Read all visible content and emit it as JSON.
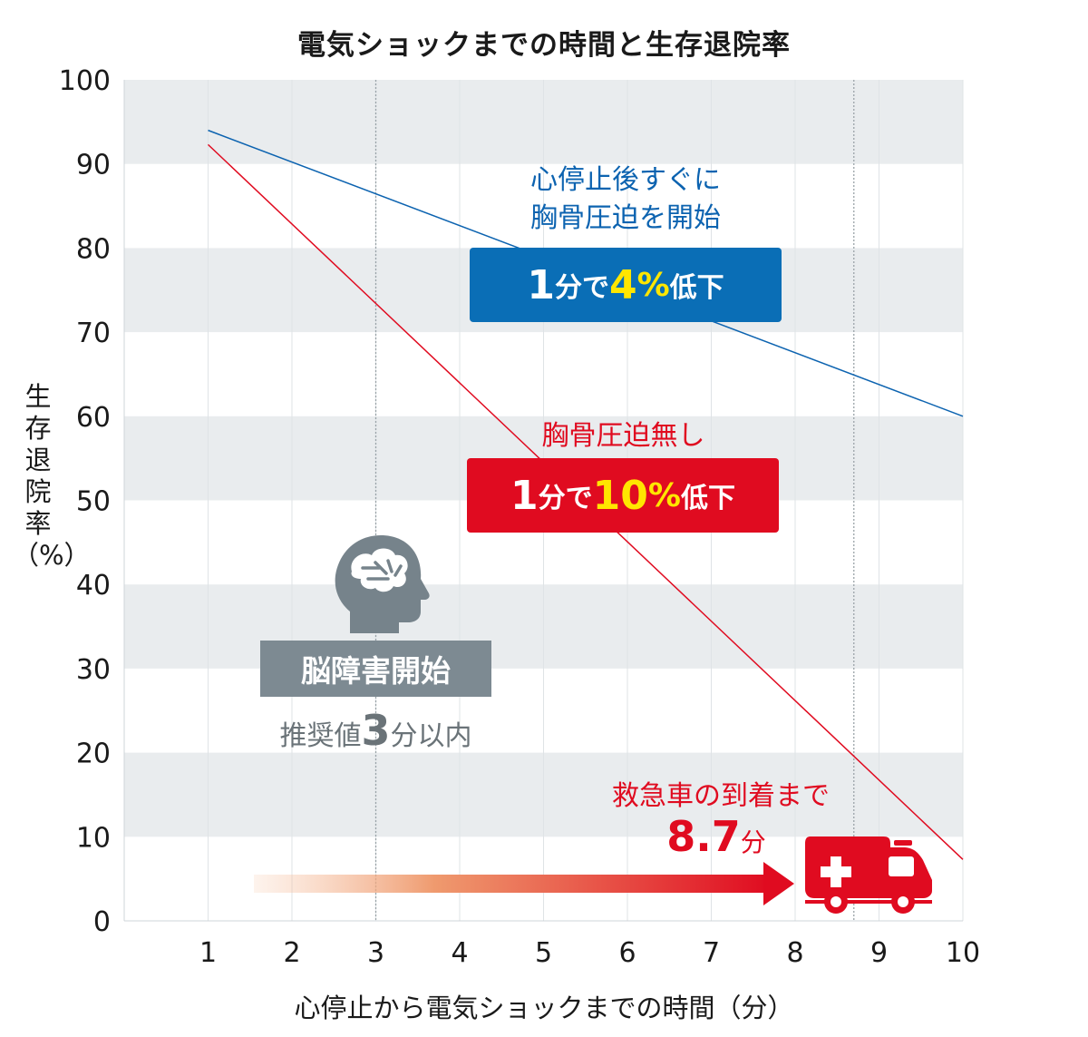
{
  "chart_data": {
    "type": "line",
    "title": "電気ショックまでの時間と生存退院率",
    "xlabel": "心停止から電気ショックまでの時間（分）",
    "ylabel": "生存退院率（%）",
    "ylabel_chars": [
      "生",
      "存",
      "退",
      "院",
      "率"
    ],
    "ylabel_unit": "（%）",
    "xlim": [
      0,
      10
    ],
    "ylim": [
      0,
      100
    ],
    "x_ticks": [
      "1",
      "2",
      "3",
      "4",
      "5",
      "6",
      "7",
      "8",
      "9",
      "10"
    ],
    "y_ticks": [
      "0",
      "10",
      "20",
      "30",
      "40",
      "50",
      "60",
      "70",
      "80",
      "90",
      "100"
    ],
    "grid": "alternating horizontal bands",
    "reference_lines_x": [
      3,
      8.7
    ],
    "series": [
      {
        "key": "blue",
        "color": "#0c63b0",
        "x": [
          1,
          10
        ],
        "y": [
          94,
          60
        ]
      },
      {
        "key": "red",
        "color": "#e00b20",
        "x": [
          1,
          10
        ],
        "y": [
          92.3,
          7.3
        ]
      }
    ]
  },
  "annotations": {
    "blue_note_line1": "心停止後すぐに",
    "blue_note_line2": "胸骨圧迫を開始",
    "blue_badge": {
      "num": "1",
      "text1": "分で",
      "hl": "4",
      "pct": "%",
      "text2": "低下"
    },
    "red_note": "胸骨圧迫無し",
    "red_badge": {
      "num": "1",
      "text1": "分で",
      "hl": "10",
      "pct": "%",
      "text2": "低下"
    },
    "brain_label": "脳障害開始",
    "brain_sub_pre": "推奨値",
    "brain_sub_num": "3",
    "brain_sub_post": "分以内",
    "ambulance_note": "救急車の到着まで",
    "ambulance_value": "8.7",
    "ambulance_unit": "分"
  },
  "colors": {
    "blue": "#0a6eb6",
    "red": "#e00b20",
    "highlight": "#ffe600",
    "band": "#e9ecee",
    "gray_icon": "#76838b"
  },
  "icons": [
    "brain-head-icon",
    "ambulance-icon",
    "arrow-icon"
  ]
}
